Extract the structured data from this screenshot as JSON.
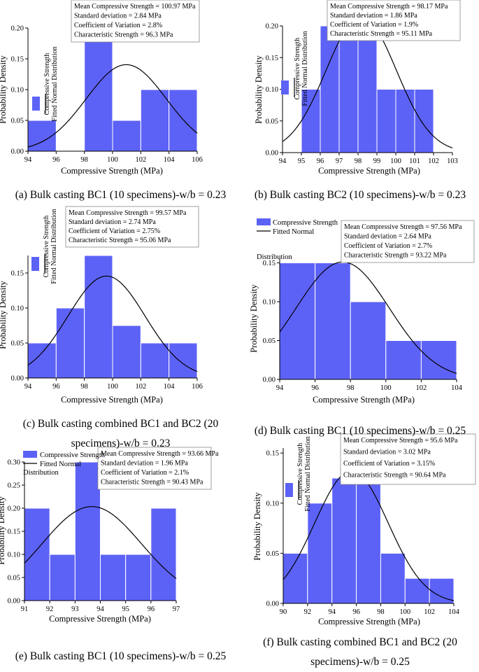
{
  "colors": {
    "bar": "#5d62f6",
    "bar_edge": "#ffffff",
    "curve": "#000000",
    "axis": "#000000"
  },
  "captions": {
    "a": "(a) Bulk casting BC1 (10 specimens)-w/b = 0.23",
    "b": "(b) Bulk casting BC2 (10 specimens)-w/b = 0.23",
    "c1": "(c) Bulk casting combined BC1 and BC2 (20",
    "c2": "specimens)-w/b = 0.23",
    "d": "(d) Bulk casting BC1 (10 specimens)-w/b = 0.25",
    "e": "(e) Bulk casting BC1 (10 specimens)-w/b = 0.25",
    "f1": "(f) Bulk casting combined BC1 and BC2 (20",
    "f2": "specimens)-w/b = 0.25"
  },
  "chart_data": [
    {
      "id": "a",
      "type": "bar",
      "title": "",
      "xlabel": "Compressive Strength (MPa)",
      "ylabel": "Probability Density",
      "xlim": [
        94,
        106
      ],
      "ylim": [
        0,
        0.2
      ],
      "xticks": [
        "94",
        "96",
        "98",
        "100",
        "102",
        "104",
        "106"
      ],
      "yticks": [
        "0.00",
        "0.05",
        "0.10",
        "0.15",
        "0.20"
      ],
      "bins": [
        [
          94,
          96,
          0.05
        ],
        [
          98,
          100,
          0.2
        ],
        [
          100,
          102,
          0.05
        ],
        [
          102,
          104,
          0.1
        ],
        [
          104,
          106,
          0.1
        ]
      ],
      "fit": {
        "mean": 100.97,
        "sd": 2.84
      },
      "legend": {
        "bar_label": "Compressive Strength",
        "curve_label": "Fitted Normal Distribution",
        "orientation": "vertical"
      },
      "stats": [
        "Mean Compressive Strength = 100.97 MPa",
        "Standard deviation = 2.84 MPa",
        "Coefficient of Variation = 2.8%",
        "Characteristic Strength = 96.3 MPa"
      ]
    },
    {
      "id": "b",
      "type": "bar",
      "title": "",
      "xlabel": "Compressive Strength (MPa)",
      "ylabel": "Probability Density",
      "xlim": [
        94,
        103
      ],
      "ylim": [
        0,
        0.2
      ],
      "xticks": [
        "94",
        "95",
        "96",
        "97",
        "98",
        "99",
        "100",
        "101",
        "102",
        "103"
      ],
      "yticks": [
        "0.00",
        "0.05",
        "0.10",
        "0.15",
        "0.20"
      ],
      "bins": [
        [
          95,
          96,
          0.1
        ],
        [
          96,
          97,
          0.2
        ],
        [
          97,
          98,
          0.2
        ],
        [
          98,
          99,
          0.2
        ],
        [
          99,
          100,
          0.1
        ],
        [
          100,
          101,
          0.1
        ],
        [
          101,
          102,
          0.1
        ]
      ],
      "fit": {
        "mean": 98.17,
        "sd": 1.86
      },
      "legend": {
        "bar_label": "Compressive Strength",
        "curve_label": "Fitted Normal Distribution",
        "orientation": "vertical"
      },
      "stats": [
        "Mean Compressive Strength = 98.17 MPa",
        "Standard deviation = 1.86 MPa",
        "Coefficient of Variation = 1.9%",
        "Characteristic Strength = 95.11 MPa"
      ]
    },
    {
      "id": "c",
      "type": "bar",
      "title": "",
      "xlabel": "Compressive Strength (MPa)",
      "ylabel": "Probability Density",
      "xlim": [
        94,
        106
      ],
      "ylim": [
        0,
        0.175
      ],
      "xticks": [
        "94",
        "96",
        "98",
        "100",
        "102",
        "104",
        "106"
      ],
      "yticks": [
        "0.00",
        "0.05",
        "0.10",
        "0.15"
      ],
      "bins": [
        [
          94,
          96,
          0.05
        ],
        [
          96,
          98,
          0.1
        ],
        [
          98,
          100,
          0.175
        ],
        [
          100,
          102,
          0.075
        ],
        [
          102,
          104,
          0.05
        ],
        [
          104,
          106,
          0.05
        ]
      ],
      "fit": {
        "mean": 99.57,
        "sd": 2.74
      },
      "legend": {
        "bar_label": "Compressive Strength",
        "curve_label": "Fitted Normal Distribution",
        "orientation": "vertical"
      },
      "stats": [
        "Mean Compressive Strength = 99.57 MPa",
        "Standard deviation = 2.74 MPa",
        "Coefficient of Variation = 2.75%",
        "Characteristic Strength = 95.06 MPa"
      ]
    },
    {
      "id": "d",
      "type": "bar",
      "title": "",
      "xlabel": "Compressive Strength (MPa)",
      "ylabel": "Probability Density",
      "xlim": [
        94,
        104
      ],
      "ylim": [
        0,
        0.155
      ],
      "xticks": [
        "94",
        "96",
        "98",
        "100",
        "102",
        "104"
      ],
      "yticks": [
        "0.00",
        "0.05",
        "0.10",
        "0.15"
      ],
      "bins": [
        [
          94,
          96,
          0.15
        ],
        [
          96,
          98,
          0.15
        ],
        [
          98,
          100,
          0.1
        ],
        [
          100,
          102,
          0.05
        ],
        [
          102,
          104,
          0.05
        ]
      ],
      "fit": {
        "mean": 97.56,
        "sd": 2.64
      },
      "legend": {
        "bar_label": "Compressive Strength",
        "curve_label": "Fitted Normal",
        "curve_label_2": "Distribution",
        "orientation": "horizontal"
      },
      "stats": [
        "Mean Compressive Strength = 97.56 MPa",
        "Standard deviation = 2.64 MPa",
        "Coefficient of Variation = 2.7%",
        "Characteristic Strength = 93.22 MPa"
      ]
    },
    {
      "id": "e",
      "type": "bar",
      "title": "",
      "xlabel": "Compressive Strength (MPa)",
      "ylabel": "Probability Density",
      "xlim": [
        91,
        97
      ],
      "ylim": [
        0,
        0.3
      ],
      "xticks": [
        "91",
        "92",
        "93",
        "94",
        "95",
        "96",
        "97"
      ],
      "yticks": [
        "0.00",
        "0.05",
        "0.10",
        "0.15",
        "0.20",
        "0.25",
        "0.30"
      ],
      "bins": [
        [
          91,
          92,
          0.2
        ],
        [
          92,
          93,
          0.1
        ],
        [
          93,
          94,
          0.3
        ],
        [
          94,
          95,
          0.1
        ],
        [
          95,
          96,
          0.1
        ],
        [
          96,
          97,
          0.2
        ]
      ],
      "fit": {
        "mean": 93.66,
        "sd": 1.96
      },
      "legend": {
        "bar_label": "Compressive Strength",
        "curve_label": "Fitted Normal",
        "curve_label_2": "Distribution",
        "orientation": "horizontal"
      },
      "stats": [
        "Mean Compressive Strength = 93.66 MPa",
        "Standard deviation = 1.96 MPa",
        "Coefficient of Variation = 2.1%",
        "Characteristic Strength = 90.43 MPa"
      ]
    },
    {
      "id": "f",
      "type": "bar",
      "title": "",
      "xlabel": "Compressive Strength (MPa)",
      "ylabel": "Probability Density",
      "xlim": [
        90,
        104
      ],
      "ylim": [
        0,
        0.155
      ],
      "xticks": [
        "90",
        "92",
        "94",
        "96",
        "98",
        "100",
        "102",
        "104"
      ],
      "yticks": [
        "0.00",
        "0.05",
        "0.10",
        "0.15"
      ],
      "bins": [
        [
          90,
          92,
          0.05
        ],
        [
          92,
          94,
          0.1
        ],
        [
          94,
          96,
          0.125
        ],
        [
          96,
          98,
          0.125
        ],
        [
          98,
          100,
          0.05
        ],
        [
          100,
          102,
          0.025
        ],
        [
          102,
          104,
          0.025
        ]
      ],
      "fit": {
        "mean": 95.6,
        "sd": 3.02
      },
      "legend": {
        "bar_label": "Compressive Strength",
        "curve_label": "Fitted Normal Distribution",
        "orientation": "vertical"
      },
      "stats": [
        "Mean Compressive Strength = 95.6 MPa",
        "Standard deviation = 3.02 MPa",
        "Coefficient of Variation = 3.15%",
        "Characteristic Strength = 90.64 MPa"
      ]
    }
  ]
}
